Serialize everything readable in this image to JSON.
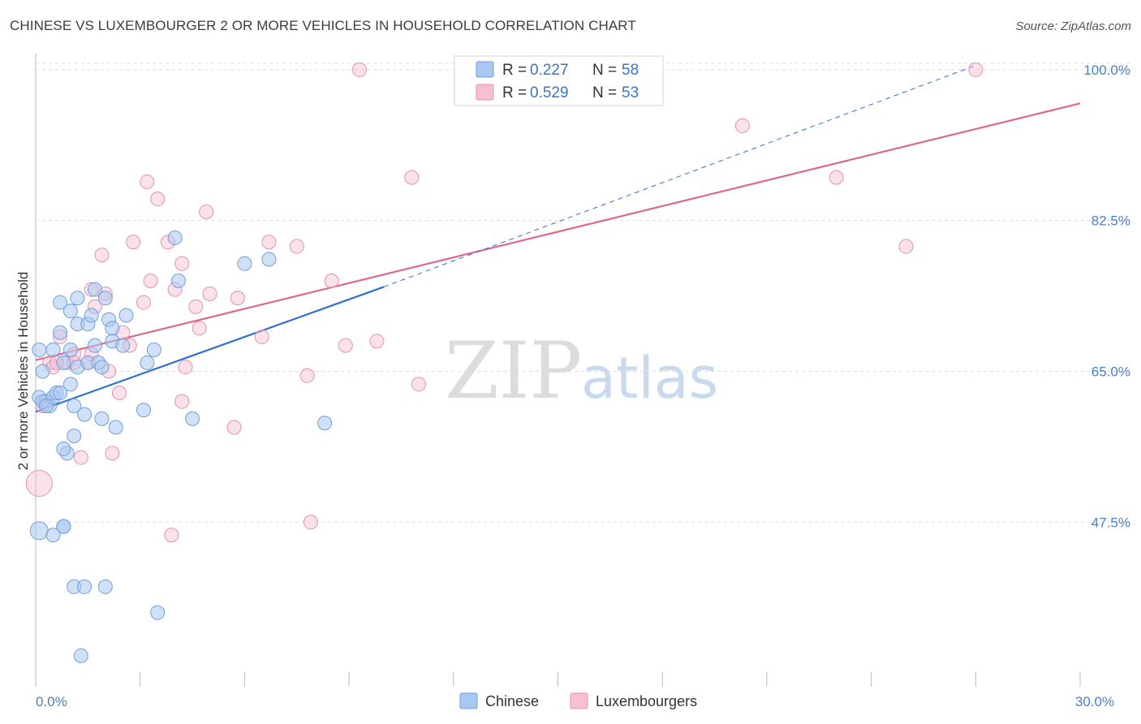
{
  "header": {
    "title": "CHINESE VS LUXEMBOURGER 2 OR MORE VEHICLES IN HOUSEHOLD CORRELATION CHART",
    "source": "Source: ZipAtlas.com"
  },
  "watermark": {
    "zip": "ZIP",
    "atlas": "atlas"
  },
  "colors": {
    "chinese_fill": "#a9c8f0",
    "chinese_stroke": "#6f9fdd",
    "chinese_line": "#2f6fcf",
    "lux_fill": "#f7bfd0",
    "lux_stroke": "#e690ad",
    "lux_line": "#e06590",
    "grid": "#dcdcdc",
    "axis": "#bbbbbb",
    "tick_text": "#4a7fc9"
  },
  "legend_top": {
    "rows": [
      {
        "r_label": "R =",
        "r_value": "0.227",
        "n_label": "N =",
        "n_value": "58"
      },
      {
        "r_label": "R =",
        "r_value": "0.529",
        "n_label": "N =",
        "n_value": "53"
      }
    ]
  },
  "chart_data": {
    "type": "scatter",
    "title": "CHINESE VS LUXEMBOURGER 2 OR MORE VEHICLES IN HOUSEHOLD CORRELATION CHART",
    "xlabel": "",
    "ylabel": "2 or more Vehicles in Household",
    "xlim": [
      0,
      30
    ],
    "ylim": [
      28.5,
      101.5
    ],
    "x_tick_labels": [
      "0.0%",
      "30.0%"
    ],
    "x_ticks": [
      0,
      30
    ],
    "x_minor_ticks": [
      3,
      6,
      9,
      12,
      15,
      18,
      21,
      24,
      27
    ],
    "y_ticks": [
      47.5,
      65.0,
      82.5,
      100.0
    ],
    "y_tick_labels": [
      "47.5%",
      "65.0%",
      "82.5%",
      "100.0%"
    ],
    "grid": true,
    "legend": [
      "Chinese",
      "Luxembourgers"
    ],
    "series": [
      {
        "name": "Chinese",
        "points": [
          [
            0.1,
            67.5
          ],
          [
            0.2,
            65.0
          ],
          [
            0.1,
            62.0
          ],
          [
            0.3,
            61.5
          ],
          [
            0.4,
            61.0
          ],
          [
            0.2,
            61.5
          ],
          [
            0.5,
            62.0
          ],
          [
            0.5,
            67.5
          ],
          [
            0.6,
            62.5
          ],
          [
            0.7,
            62.5
          ],
          [
            0.7,
            69.5
          ],
          [
            0.7,
            73.0
          ],
          [
            0.8,
            66.0
          ],
          [
            1.0,
            67.5
          ],
          [
            0.9,
            55.5
          ],
          [
            1.0,
            63.5
          ],
          [
            1.0,
            72.0
          ],
          [
            1.1,
            57.5
          ],
          [
            1.1,
            61.0
          ],
          [
            0.8,
            56.0
          ],
          [
            1.2,
            65.5
          ],
          [
            1.2,
            70.5
          ],
          [
            1.2,
            73.5
          ],
          [
            1.4,
            60.0
          ],
          [
            1.5,
            70.5
          ],
          [
            1.5,
            66.0
          ],
          [
            1.6,
            71.5
          ],
          [
            1.7,
            68.0
          ],
          [
            1.7,
            74.5
          ],
          [
            1.8,
            66.0
          ],
          [
            1.9,
            65.5
          ],
          [
            1.9,
            59.5
          ],
          [
            2.0,
            73.5
          ],
          [
            2.1,
            71.0
          ],
          [
            2.2,
            68.5
          ],
          [
            2.2,
            70.0
          ],
          [
            2.3,
            58.5
          ],
          [
            2.5,
            68.0
          ],
          [
            2.6,
            71.5
          ],
          [
            3.1,
            60.5
          ],
          [
            3.2,
            66.0
          ],
          [
            3.4,
            67.5
          ],
          [
            4.1,
            75.5
          ],
          [
            4.0,
            80.5
          ],
          [
            4.5,
            59.5
          ],
          [
            6.0,
            77.5
          ],
          [
            6.7,
            78.0
          ],
          [
            8.3,
            59.0
          ],
          [
            0.1,
            46.5
          ],
          [
            0.5,
            46.0
          ],
          [
            0.8,
            47.0
          ],
          [
            0.8,
            47.0
          ],
          [
            1.1,
            40.0
          ],
          [
            1.4,
            40.0
          ],
          [
            2.0,
            40.0
          ],
          [
            3.5,
            37.0
          ],
          [
            1.3,
            32.0
          ],
          [
            0.3,
            61.0
          ]
        ],
        "trendline": {
          "x": [
            0,
            10
          ],
          "y": [
            60.3,
            74.8
          ]
        },
        "trendline_extension": {
          "x": [
            10,
            27
          ],
          "y": [
            74.8,
            100.5
          ]
        }
      },
      {
        "name": "Luxembourgers",
        "points": [
          [
            0.1,
            52.0
          ],
          [
            0.2,
            61.0
          ],
          [
            0.4,
            66.0
          ],
          [
            0.5,
            65.5
          ],
          [
            0.7,
            69.0
          ],
          [
            0.9,
            66.0
          ],
          [
            1.1,
            67.0
          ],
          [
            1.1,
            66.0
          ],
          [
            1.3,
            55.0
          ],
          [
            1.5,
            66.0
          ],
          [
            1.6,
            74.5
          ],
          [
            1.7,
            72.5
          ],
          [
            1.9,
            78.5
          ],
          [
            2.1,
            65.0
          ],
          [
            2.2,
            55.5
          ],
          [
            2.4,
            62.5
          ],
          [
            2.5,
            69.5
          ],
          [
            2.7,
            68.0
          ],
          [
            2.8,
            80.0
          ],
          [
            3.1,
            73.0
          ],
          [
            3.2,
            87.0
          ],
          [
            3.3,
            75.5
          ],
          [
            3.5,
            85.0
          ],
          [
            3.8,
            80.0
          ],
          [
            3.9,
            46.0
          ],
          [
            4.0,
            74.5
          ],
          [
            4.2,
            77.5
          ],
          [
            4.2,
            61.5
          ],
          [
            4.3,
            65.5
          ],
          [
            4.6,
            72.5
          ],
          [
            4.7,
            70.0
          ],
          [
            4.9,
            83.5
          ],
          [
            5.0,
            74.0
          ],
          [
            5.7,
            58.5
          ],
          [
            5.8,
            73.5
          ],
          [
            6.5,
            69.0
          ],
          [
            6.7,
            80.0
          ],
          [
            7.5,
            79.5
          ],
          [
            7.8,
            64.5
          ],
          [
            7.9,
            47.5
          ],
          [
            8.5,
            75.5
          ],
          [
            8.9,
            68.0
          ],
          [
            9.3,
            100.0
          ],
          [
            9.8,
            68.5
          ],
          [
            10.8,
            87.5
          ],
          [
            11.0,
            63.5
          ],
          [
            20.3,
            93.5
          ],
          [
            23.0,
            87.5
          ],
          [
            25.0,
            79.5
          ],
          [
            27.0,
            100.0
          ],
          [
            2.0,
            74.0
          ],
          [
            1.6,
            67.0
          ],
          [
            0.6,
            66.0
          ]
        ],
        "trendline": {
          "x": [
            0,
            30
          ],
          "y": [
            66.3,
            96.1
          ]
        }
      }
    ]
  },
  "legend_bottom": {
    "items": [
      {
        "label": "Chinese"
      },
      {
        "label": "Luxembourgers"
      }
    ]
  }
}
